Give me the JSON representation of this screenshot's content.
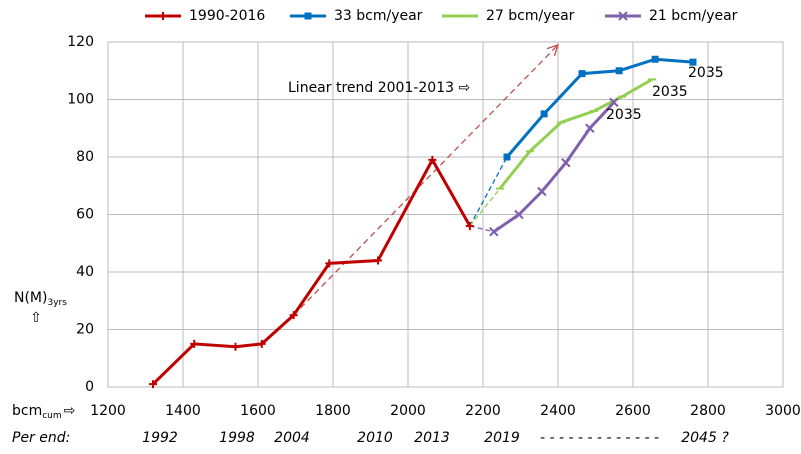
{
  "chart_data": {
    "type": "line",
    "legend_position": "top",
    "grid": true,
    "xlim": [
      1200,
      3000
    ],
    "xticks": [
      1200,
      1400,
      1600,
      1800,
      2000,
      2200,
      2400,
      2600,
      2800,
      3000
    ],
    "ylim": [
      0,
      120
    ],
    "yticks": [
      0,
      20,
      40,
      60,
      80,
      100,
      120
    ],
    "x_label": "bcm",
    "x_label_sub": "cum",
    "x_label_arrow": "⇨",
    "y_label": "N(M)",
    "y_label_sub": "3yrs",
    "y_label_arrow": "⇧",
    "period_title": "Per end:",
    "period_labels": [
      "1992",
      "1998",
      "2004",
      "2010",
      "2013",
      "2019",
      "- - - - - - - - - - - - -",
      "2045 ?"
    ],
    "series": [
      {
        "name": "1990-2016",
        "color": "#c00000",
        "marker": "plus",
        "x": [
          1320,
          1430,
          1540,
          1610,
          1695,
          1790,
          1920,
          2065,
          2165
        ],
        "values": [
          1,
          15,
          14,
          15,
          25,
          43,
          44,
          79,
          56
        ]
      },
      {
        "name": "33 bcm/year",
        "color": "#0070c0",
        "marker": "square",
        "x": [
          2264,
          2363,
          2464,
          2563,
          2659,
          2760
        ],
        "values": [
          80,
          95,
          109,
          110,
          114,
          113
        ]
      },
      {
        "name": "27 bcm/year",
        "color": "#92d050",
        "marker": "dash",
        "x": [
          2245,
          2325,
          2408,
          2496,
          2571,
          2651
        ],
        "values": [
          69,
          82,
          92,
          96,
          101,
          107
        ]
      },
      {
        "name": "21 bcm/year",
        "color": "#7f5fae",
        "marker": "cross",
        "x": [
          2229,
          2296,
          2357,
          2421,
          2485,
          2549
        ],
        "values": [
          54,
          60,
          68,
          78,
          90,
          99
        ]
      }
    ],
    "trend_line": {
      "label": "Linear trend 2001-2013 ⇨",
      "color": "#c0504d",
      "x": [
        1695,
        2400
      ],
      "values": [
        25,
        119
      ]
    },
    "end_labels": [
      "2035",
      "2035",
      "2035"
    ]
  }
}
